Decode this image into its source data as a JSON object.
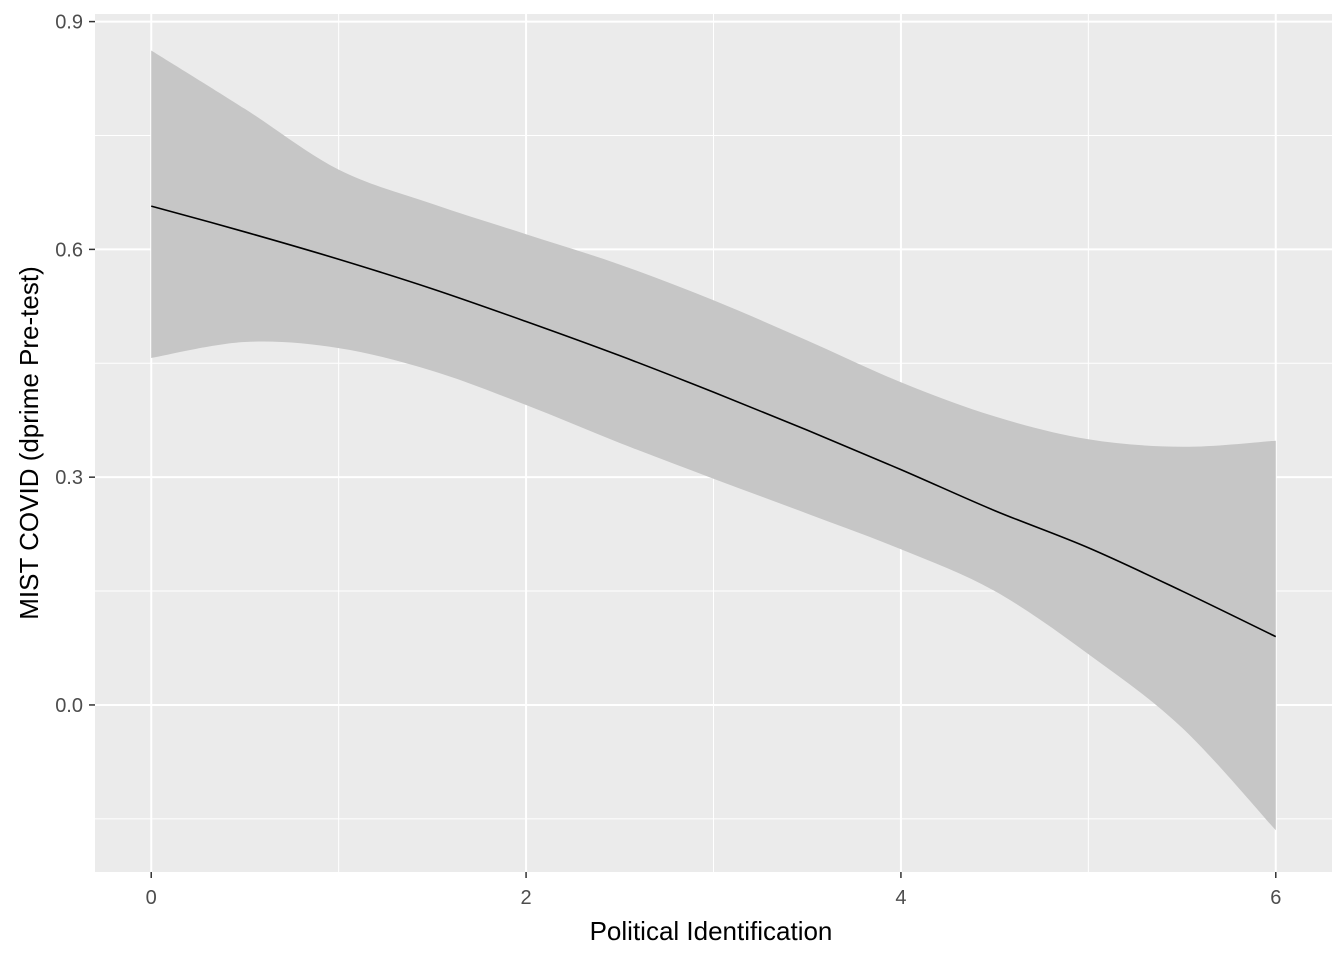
{
  "chart_data": {
    "type": "line",
    "title": "",
    "xlabel": "Political Identification",
    "ylabel": "MIST COVID (dprime Pre-test)",
    "xlim": [
      -0.3,
      6.3
    ],
    "ylim": [
      -0.22,
      0.91
    ],
    "x_ticks": [
      0,
      2,
      4,
      6
    ],
    "x_tick_labels": [
      "0",
      "2",
      "4",
      "6"
    ],
    "y_ticks": [
      0.0,
      0.3,
      0.6,
      0.9
    ],
    "y_tick_labels": [
      "0.0",
      "0.3",
      "0.6",
      "0.9"
    ],
    "grid": true,
    "colors": {
      "panel_background": "#ebebeb",
      "grid": "#ffffff",
      "ribbon": "#c6c6c6",
      "line": "#000000"
    },
    "series": [
      {
        "x": [
          0.0,
          0.5,
          1.0,
          1.5,
          2.0,
          2.5,
          3.0,
          3.5,
          4.0,
          4.5,
          5.0,
          5.5,
          6.0
        ],
        "y": [
          0.657,
          0.623,
          0.587,
          0.548,
          0.505,
          0.46,
          0.412,
          0.362,
          0.31,
          0.256,
          0.207,
          0.15,
          0.09
        ],
        "lower": [
          0.457,
          0.478,
          0.47,
          0.44,
          0.395,
          0.345,
          0.298,
          0.252,
          0.205,
          0.15,
          0.067,
          -0.03,
          -0.165
        ],
        "upper": [
          0.862,
          0.785,
          0.705,
          0.66,
          0.62,
          0.58,
          0.533,
          0.48,
          0.425,
          0.38,
          0.35,
          0.34,
          0.348
        ]
      }
    ]
  }
}
